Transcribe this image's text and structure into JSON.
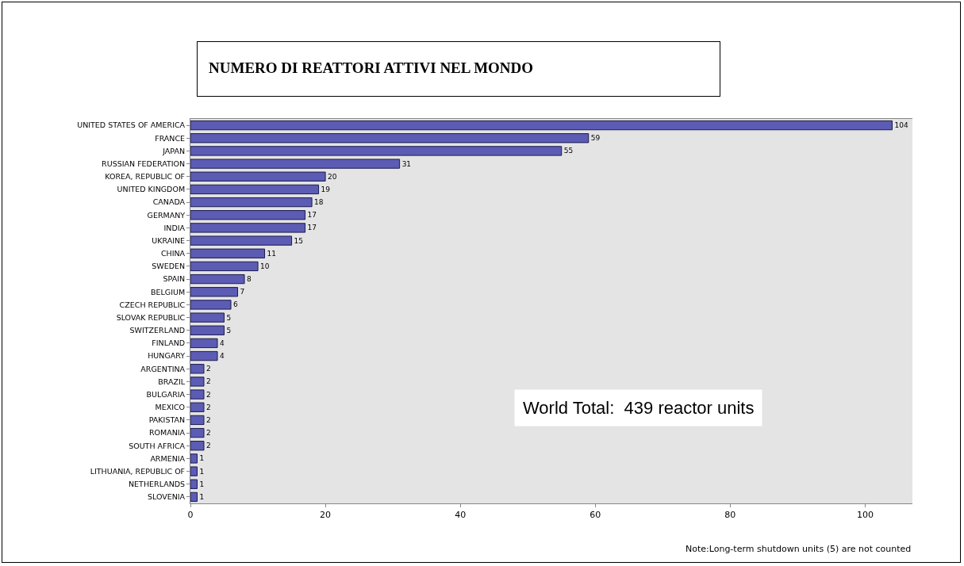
{
  "chart_data": {
    "type": "bar",
    "orientation": "horizontal",
    "title": "NUMERO DI REATTORI ATTIVI NEL MONDO",
    "categories": [
      "UNITED STATES OF AMERICA",
      "FRANCE",
      "JAPAN",
      "RUSSIAN FEDERATION",
      "KOREA, REPUBLIC OF",
      "UNITED KINGDOM",
      "CANADA",
      "GERMANY",
      "INDIA",
      "UKRAINE",
      "CHINA",
      "SWEDEN",
      "SPAIN",
      "BELGIUM",
      "CZECH REPUBLIC",
      "SLOVAK REPUBLIC",
      "SWITZERLAND",
      "FINLAND",
      "HUNGARY",
      "ARGENTINA",
      "BRAZIL",
      "BULGARIA",
      "MEXICO",
      "PAKISTAN",
      "ROMANIA",
      "SOUTH AFRICA",
      "ARMENIA",
      "LITHUANIA, REPUBLIC OF",
      "NETHERLANDS",
      "SLOVENIA"
    ],
    "values": [
      104,
      59,
      55,
      31,
      20,
      19,
      18,
      17,
      17,
      15,
      11,
      10,
      8,
      7,
      6,
      5,
      5,
      4,
      4,
      2,
      2,
      2,
      2,
      2,
      2,
      2,
      1,
      1,
      1,
      1
    ],
    "color": "#5c5cb4",
    "data_labels": true,
    "xlim": [
      0,
      107
    ],
    "xticks": [
      0,
      20,
      40,
      60,
      80,
      100
    ],
    "grid": false,
    "annotations": [
      "World Total:  439 reactor units",
      "Note:Long-term shutdown units (5) are not counted"
    ]
  }
}
